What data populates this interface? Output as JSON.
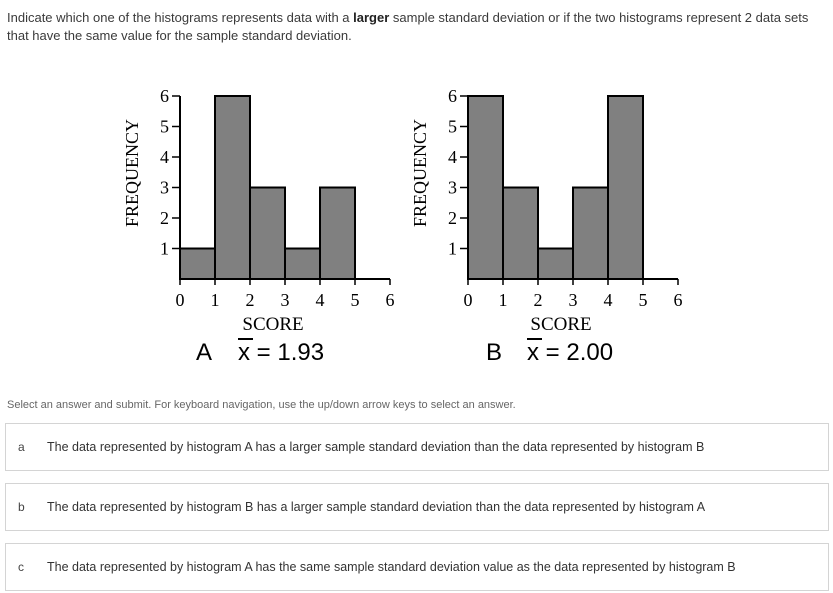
{
  "question": {
    "text_before": "Indicate which one of the histograms represents data with a ",
    "text_bold": "larger",
    "text_after": " sample standard deviation or if the two histograms represent 2 data sets that have the same value for the sample standard deviation."
  },
  "chart_data": [
    {
      "type": "bar",
      "panel_label": "A",
      "mean_text": "x = 1.93",
      "xlabel": "SCORE",
      "ylabel": "FREQUENCY",
      "x_ticks": [
        "0",
        "1",
        "2",
        "3",
        "4",
        "5",
        "6"
      ],
      "y_ticks": [
        "1",
        "2",
        "3",
        "4",
        "5",
        "6"
      ],
      "categories": [
        "0-1",
        "1-2",
        "2-3",
        "3-4",
        "4-5",
        "5-6"
      ],
      "values": [
        1,
        6,
        3,
        1,
        3,
        0
      ],
      "xlim": [
        0,
        6
      ],
      "ylim": [
        0,
        6
      ],
      "bar_color": "#808080"
    },
    {
      "type": "bar",
      "panel_label": "B",
      "mean_text": "x = 2.00",
      "xlabel": "SCORE",
      "ylabel": "FREQUENCY",
      "x_ticks": [
        "0",
        "1",
        "2",
        "3",
        "4",
        "5",
        "6"
      ],
      "y_ticks": [
        "1",
        "2",
        "3",
        "4",
        "5",
        "6"
      ],
      "categories": [
        "0-1",
        "1-2",
        "2-3",
        "3-4",
        "4-5",
        "5-6"
      ],
      "values": [
        6,
        3,
        1,
        3,
        6,
        0
      ],
      "xlim": [
        0,
        6
      ],
      "ylim": [
        0,
        6
      ],
      "bar_color": "#808080"
    }
  ],
  "instruction": "Select an answer and submit. For keyboard navigation, use the up/down arrow keys to select an answer.",
  "options": [
    {
      "letter": "a",
      "text": "The data represented by histogram A has a larger sample standard deviation than the data represented by histogram B"
    },
    {
      "letter": "b",
      "text": "The data represented by histogram B has a larger sample standard deviation than the data represented by histogram A"
    },
    {
      "letter": "c",
      "text": "The data represented by histogram A has the same sample standard deviation value as the data represented by histogram B"
    }
  ]
}
